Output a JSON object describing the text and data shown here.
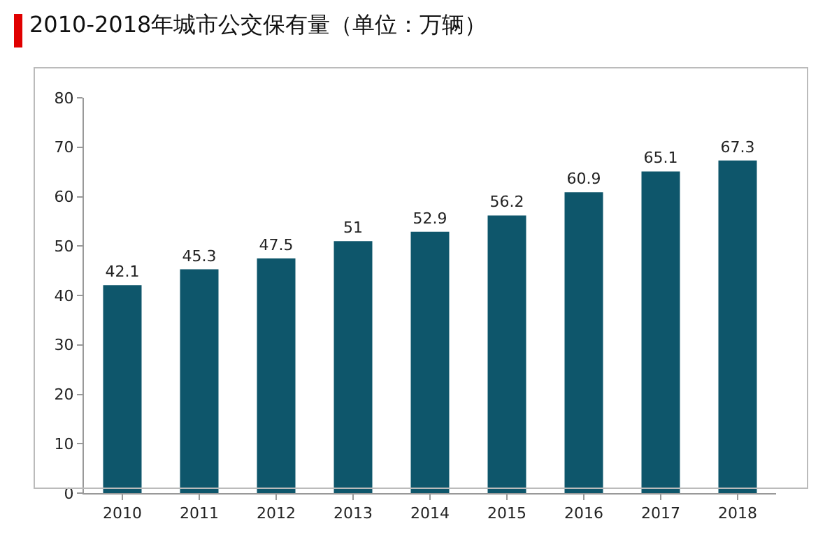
{
  "chart_data": {
    "type": "bar",
    "title": "2010-2018年城市公交保有量（单位：万辆）",
    "categories": [
      "2010",
      "2011",
      "2012",
      "2013",
      "2014",
      "2015",
      "2016",
      "2017",
      "2018"
    ],
    "values": [
      42.1,
      45.3,
      47.5,
      51,
      52.9,
      56.2,
      60.9,
      65.1,
      67.3
    ],
    "color": "#0e566b",
    "data_labels": true,
    "grid": false,
    "legend": false,
    "ylim": [
      0,
      80
    ],
    "yticks": [
      0,
      10,
      20,
      30,
      40,
      50,
      60,
      70,
      80
    ]
  }
}
